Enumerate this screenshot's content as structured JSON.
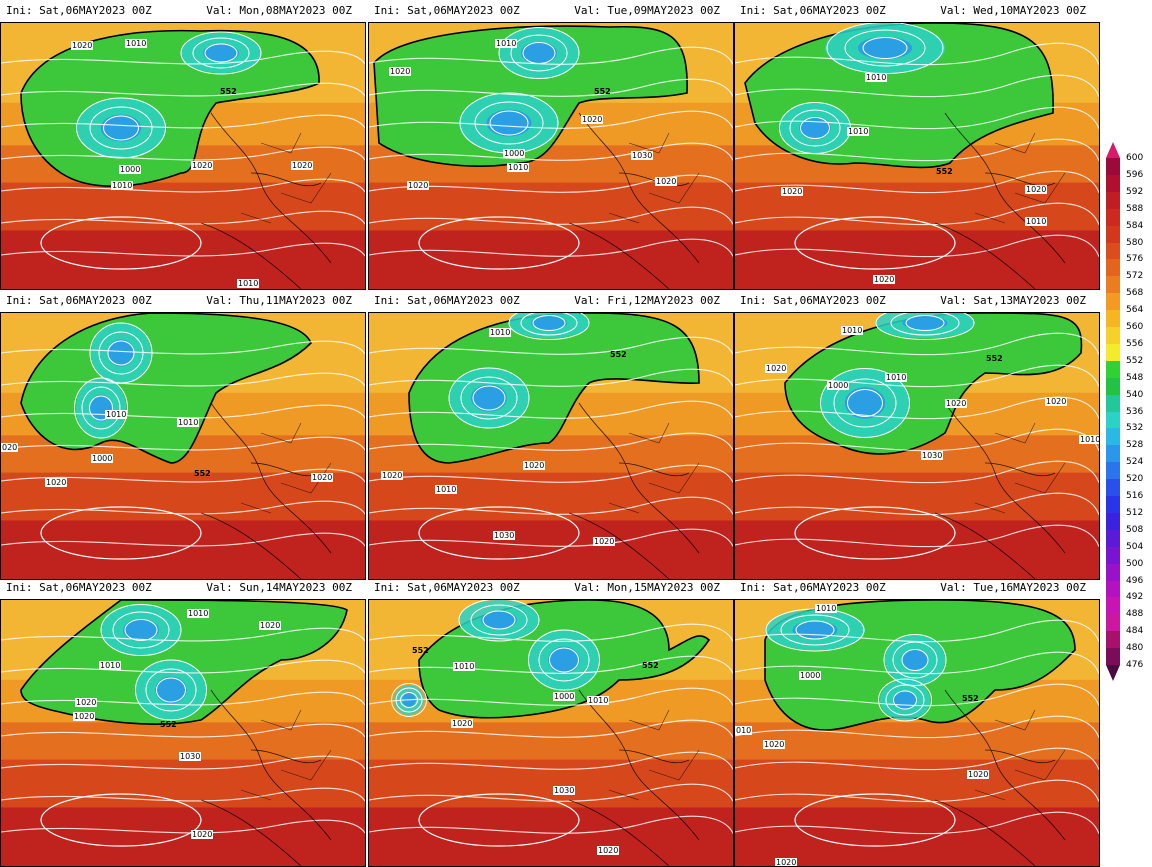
{
  "panels": [
    {
      "ini": "Ini: Sat,06MAY2023 00Z",
      "val": "Val: Mon,08MAY2023 00Z",
      "labels": [
        "1020",
        "1010",
        "552",
        "1020",
        "1020",
        "1000",
        "1010",
        "1010"
      ]
    },
    {
      "ini": "Ini: Sat,06MAY2023 00Z",
      "val": "Val: Tue,09MAY2023 00Z",
      "labels": [
        "1010",
        "1020",
        "552",
        "1020",
        "1000",
        "1010",
        "1030",
        "1020",
        "1020"
      ]
    },
    {
      "ini": "Ini: Sat,06MAY2023 00Z",
      "val": "Val: Wed,10MAY2023 00Z",
      "labels": [
        "1010",
        "1010",
        "552",
        "1020",
        "1020",
        "1010",
        "1020"
      ]
    },
    {
      "ini": "Ini: Sat,06MAY2023 00Z",
      "val": "Val: Thu,11MAY2023 00Z",
      "labels": [
        "1010",
        "1010",
        "1000",
        "552",
        "1020",
        "1020",
        "020"
      ]
    },
    {
      "ini": "Ini: Sat,06MAY2023 00Z",
      "val": "Val: Fri,12MAY2023 00Z",
      "labels": [
        "1010",
        "552",
        "1020",
        "1020",
        "1010",
        "1030",
        "1020"
      ]
    },
    {
      "ini": "Ini: Sat,06MAY2023 00Z",
      "val": "Val: Sat,13MAY2023 00Z",
      "labels": [
        "1010",
        "1020",
        "1000",
        "1010",
        "552",
        "1020",
        "1020",
        "1030",
        "1010"
      ]
    },
    {
      "ini": "Ini: Sat,06MAY2023 00Z",
      "val": "Val: Sun,14MAY2023 00Z",
      "labels": [
        "1010",
        "1010",
        "1020",
        "1020",
        "1020",
        "552",
        "1030",
        "1020"
      ]
    },
    {
      "ini": "Ini: Sat,06MAY2023 00Z",
      "val": "Val: Mon,15MAY2023 00Z",
      "labels": [
        "552",
        "1010",
        "1000",
        "552",
        "1010",
        "1020",
        "1030",
        "1020"
      ]
    },
    {
      "ini": "Ini: Sat,06MAY2023 00Z",
      "val": "Val: Tue,16MAY2023 00Z",
      "labels": [
        "1010",
        "1000",
        "552",
        "010",
        "1020",
        "1020",
        "1020"
      ]
    }
  ],
  "colorbar": {
    "ticks": [
      "600",
      "596",
      "592",
      "588",
      "584",
      "580",
      "576",
      "572",
      "568",
      "564",
      "560",
      "556",
      "552",
      "548",
      "540",
      "536",
      "532",
      "528",
      "524",
      "520",
      "516",
      "512",
      "508",
      "504",
      "500",
      "496",
      "492",
      "488",
      "484",
      "480",
      "476"
    ],
    "colors": [
      "#9c0a3c",
      "#b0102e",
      "#c01e24",
      "#cc2a1e",
      "#d4381c",
      "#dc4c1c",
      "#e4641e",
      "#ec7c20",
      "#f29a22",
      "#f6b624",
      "#f8d02a",
      "#f6ea2c",
      "#2ed232",
      "#22c246",
      "#22c89a",
      "#2ad2c8",
      "#2ab8e4",
      "#2a96ec",
      "#2a74ec",
      "#2a50ec",
      "#2a34e8",
      "#3a22e0",
      "#5a1ad8",
      "#7a14d0",
      "#9a12c8",
      "#b412c0",
      "#c814b4",
      "#cc18a0",
      "#a8106c",
      "#7a0c5a"
    ],
    "top_arrow_color": "#d81a6a",
    "bottom_arrow_color": "#4a0a40"
  }
}
